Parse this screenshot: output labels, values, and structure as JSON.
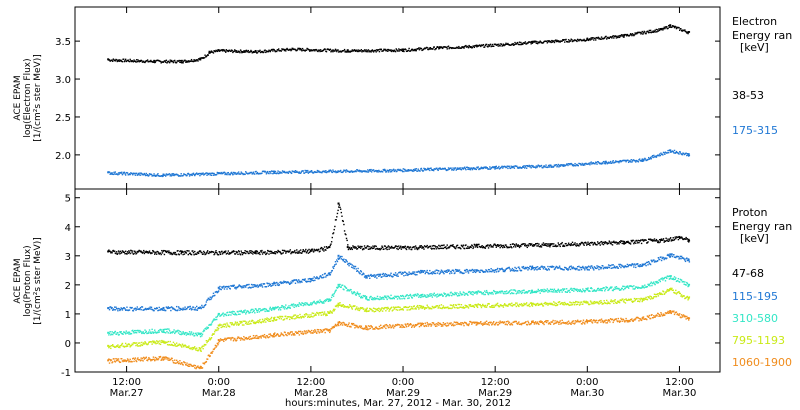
{
  "chart_data": [
    {
      "type": "scatter",
      "panel": "electron",
      "ylabel_lines": [
        "ACE EPAM",
        "log(Electron Flux)",
        "[1/(cm²s ster MeV)]"
      ],
      "ylim": [
        1.55,
        3.95
      ],
      "yticks": [
        2.0,
        2.5,
        3.0,
        3.5
      ],
      "ytick_labels": [
        "2.0",
        "2.5",
        "3.0",
        "3.5"
      ],
      "legend_title_lines": [
        "Electron",
        "Energy ran",
        "[keV]"
      ],
      "grid": false,
      "series": [
        {
          "name": "38-53",
          "color": "#000000",
          "x": [
            0,
            0.25,
            0.4,
            0.5,
            0.55,
            0.6,
            0.8,
            1.0,
            1.3,
            1.6,
            1.8,
            2.0,
            2.3,
            2.6,
            2.8,
            3.0,
            3.05,
            3.15
          ],
          "y": [
            3.26,
            3.24,
            3.24,
            3.27,
            3.36,
            3.38,
            3.37,
            3.4,
            3.38,
            3.39,
            3.42,
            3.44,
            3.49,
            3.53,
            3.58,
            3.66,
            3.71,
            3.62
          ]
        },
        {
          "name": "175-315",
          "color": "#1f77d4",
          "x": [
            0,
            0.3,
            0.6,
            0.9,
            1.2,
            1.5,
            1.8,
            2.1,
            2.4,
            2.7,
            2.9,
            3.05,
            3.15
          ],
          "y": [
            1.77,
            1.74,
            1.76,
            1.78,
            1.79,
            1.8,
            1.82,
            1.84,
            1.86,
            1.91,
            1.94,
            2.06,
            2.01
          ]
        }
      ]
    },
    {
      "type": "scatter",
      "panel": "proton",
      "ylabel_lines": [
        "ACE EPAM",
        "log(Proton Flux)",
        "[1/(cm²s ster MeV)]"
      ],
      "ylim": [
        -1.0,
        5.3
      ],
      "yticks": [
        -1,
        0,
        1,
        2,
        3,
        4,
        5
      ],
      "ytick_labels": [
        "-1",
        "0",
        "1",
        "2",
        "3",
        "4",
        "5"
      ],
      "legend_title_lines": [
        "Proton",
        "Energy ran",
        "[keV]"
      ],
      "grid": false,
      "series": [
        {
          "name": "47-68",
          "color": "#000000",
          "x": [
            0,
            0.4,
            0.8,
            1.1,
            1.2,
            1.25,
            1.3,
            1.6,
            2.0,
            2.4,
            2.8,
            3.0,
            3.1,
            3.15
          ],
          "y": [
            3.15,
            3.13,
            3.13,
            3.18,
            3.3,
            4.8,
            3.3,
            3.3,
            3.35,
            3.4,
            3.48,
            3.55,
            3.65,
            3.55
          ]
        },
        {
          "name": "115-195",
          "color": "#1f77d4",
          "x": [
            0,
            0.3,
            0.5,
            0.6,
            0.9,
            1.1,
            1.2,
            1.25,
            1.4,
            1.7,
            2.0,
            2.3,
            2.6,
            2.9,
            3.05,
            3.15
          ],
          "y": [
            1.2,
            1.2,
            1.22,
            1.9,
            2.05,
            2.2,
            2.4,
            3.0,
            2.3,
            2.45,
            2.5,
            2.6,
            2.6,
            2.7,
            3.05,
            2.85
          ]
        },
        {
          "name": "310-580",
          "color": "#33e6c6",
          "x": [
            0,
            0.3,
            0.5,
            0.6,
            0.9,
            1.2,
            1.25,
            1.4,
            1.7,
            2.0,
            2.3,
            2.6,
            2.9,
            3.05,
            3.15
          ],
          "y": [
            0.35,
            0.45,
            0.3,
            1.0,
            1.2,
            1.5,
            2.0,
            1.55,
            1.65,
            1.75,
            1.8,
            1.85,
            1.95,
            2.3,
            2.0
          ]
        },
        {
          "name": "795-1193",
          "color": "#c9ea16",
          "x": [
            0,
            0.3,
            0.5,
            0.6,
            0.9,
            1.2,
            1.25,
            1.4,
            1.7,
            2.0,
            2.3,
            2.6,
            2.9,
            3.05,
            3.15
          ],
          "y": [
            -0.1,
            0.05,
            -0.2,
            0.6,
            0.85,
            1.05,
            1.35,
            1.15,
            1.25,
            1.3,
            1.35,
            1.4,
            1.5,
            1.85,
            1.55
          ]
        },
        {
          "name": "1060-1900",
          "color": "#f08c1c",
          "x": [
            0,
            0.3,
            0.5,
            0.6,
            0.9,
            1.2,
            1.25,
            1.4,
            1.7,
            2.0,
            2.3,
            2.6,
            2.9,
            3.05,
            3.15
          ],
          "y": [
            -0.6,
            -0.5,
            -0.85,
            0.1,
            0.3,
            0.45,
            0.7,
            0.55,
            0.65,
            0.7,
            0.72,
            0.75,
            0.85,
            1.1,
            0.85
          ]
        }
      ]
    }
  ],
  "x_axis": {
    "xlim": [
      -0.18,
      3.32
    ],
    "ticks": [
      {
        "x": 0.1,
        "time": "12:00",
        "date": "Mar.27"
      },
      {
        "x": 0.6,
        "time": "0:00",
        "date": "Mar.28"
      },
      {
        "x": 1.1,
        "time": "12:00",
        "date": "Mar.28"
      },
      {
        "x": 1.6,
        "time": "0:00",
        "date": "Mar.29"
      },
      {
        "x": 2.1,
        "time": "12:00",
        "date": "Mar.29"
      },
      {
        "x": 2.6,
        "time": "0:00",
        "date": "Mar.30"
      },
      {
        "x": 3.1,
        "time": "12:00",
        "date": "Mar.30"
      }
    ],
    "label": "hours:minutes, Mar. 27, 2012 - Mar. 30, 2012"
  }
}
